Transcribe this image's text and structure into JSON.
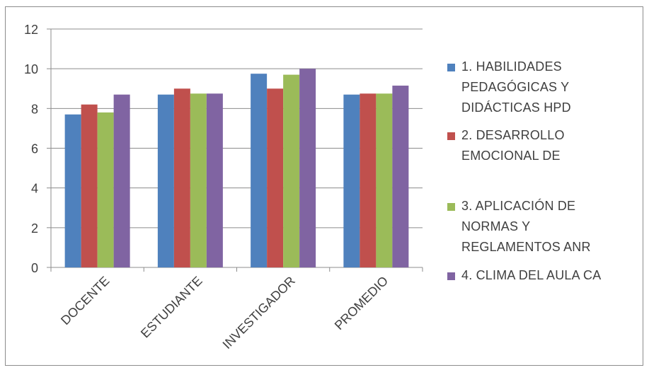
{
  "chart_data": {
    "type": "bar",
    "categories": [
      "DOCENTE",
      "ESTUDIANTE",
      "INVESTIGADOR",
      "PROMEDIO"
    ],
    "series": [
      {
        "name": "1. HABILIDADES PEDAGÓGICAS Y DIDÁCTICAS HPD",
        "legend_lines": [
          "1. HABILIDADES",
          "PEDAGÓGICAS Y",
          "DIDÁCTICAS HPD"
        ],
        "color": "#4F81BD",
        "values": [
          7.7,
          8.7,
          9.75,
          8.7
        ]
      },
      {
        "name": "2. DESARROLLO EMOCIONAL DE",
        "legend_lines": [
          "2. DESARROLLO",
          "EMOCIONAL DE"
        ],
        "color": "#C0504D",
        "values": [
          8.2,
          9.0,
          9.0,
          8.75
        ]
      },
      {
        "name": "3. APLICACIÓN DE NORMAS Y REGLAMENTOS ANR",
        "legend_lines": [
          "3. APLICACIÓN DE",
          "NORMAS Y",
          "REGLAMENTOS ANR"
        ],
        "color": "#9BBB59",
        "values": [
          7.8,
          8.75,
          9.7,
          8.75
        ]
      },
      {
        "name": "4. CLIMA DEL AULA CA",
        "legend_lines": [
          "4. CLIMA DEL AULA CA"
        ],
        "color": "#8064A2",
        "values": [
          8.7,
          8.75,
          10.0,
          9.15
        ]
      }
    ],
    "ylim": [
      0,
      12
    ],
    "yticks": [
      "0",
      "2",
      "4",
      "6",
      "8",
      "10",
      "12"
    ],
    "grid": true,
    "legend_position": "right",
    "title": "",
    "xlabel": "",
    "ylabel": ""
  }
}
